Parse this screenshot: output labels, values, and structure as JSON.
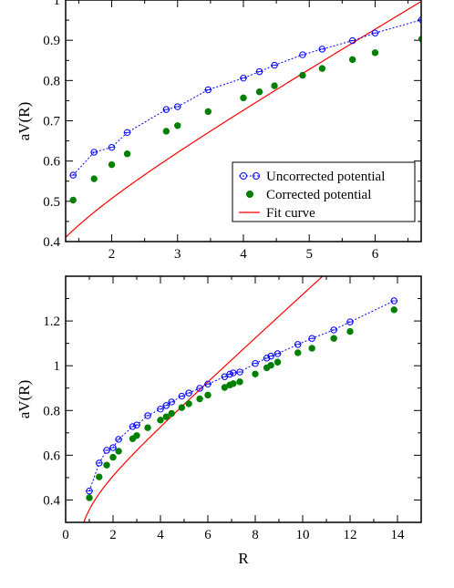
{
  "chart_data": [
    {
      "type": "scatter",
      "xlabel": "",
      "ylabel": "aV(R)",
      "xlim": [
        1.3,
        6.7
      ],
      "ylim": [
        0.4,
        1.0
      ],
      "xticks": [
        2,
        3,
        4,
        5,
        6
      ],
      "yticks": [
        0.4,
        0.5,
        0.6,
        0.7,
        0.8,
        0.9,
        1.0
      ],
      "ytick_labels": [
        "0.4",
        "0.5",
        "0.6",
        "0.7",
        "0.8",
        "0.9",
        "1"
      ],
      "legend_position": "lower-right",
      "series": [
        {
          "name": "Uncorrected potential",
          "color": "#0000ff",
          "marker": "open-circle",
          "line": "dotted",
          "x": [
            1.414,
            1.732,
            2.0,
            2.236,
            2.828,
            3.0,
            3.464,
            4.0,
            4.243,
            4.472,
            4.899,
            5.196,
            5.657,
            6.0,
            6.708
          ],
          "y": [
            0.565,
            0.622,
            0.634,
            0.671,
            0.728,
            0.735,
            0.777,
            0.806,
            0.822,
            0.838,
            0.864,
            0.878,
            0.899,
            0.918,
            0.951
          ]
        },
        {
          "name": "Corrected potential",
          "color": "#008000",
          "marker": "filled-circle",
          "line": "none",
          "x": [
            1.414,
            1.732,
            2.0,
            2.236,
            2.828,
            3.0,
            3.464,
            4.0,
            4.243,
            4.472,
            4.899,
            5.196,
            5.657,
            6.0,
            6.708
          ],
          "y": [
            0.503,
            0.556,
            0.591,
            0.618,
            0.674,
            0.688,
            0.723,
            0.757,
            0.772,
            0.787,
            0.813,
            0.83,
            0.852,
            0.869,
            0.903
          ]
        },
        {
          "name": "Fit curve",
          "color": "#ff0000",
          "marker": "none",
          "line": "solid",
          "model": {
            "form": "A + B*R - C/R",
            "A": 0.3694,
            "B": 0.096,
            "C": 0.1088
          }
        }
      ]
    },
    {
      "type": "scatter",
      "xlabel": "R",
      "ylabel": "aV(R)",
      "xlim": [
        0,
        15
      ],
      "ylim": [
        0.3,
        1.4
      ],
      "xticks": [
        0,
        2,
        4,
        6,
        8,
        10,
        12,
        14
      ],
      "yticks": [
        0.4,
        0.6,
        0.8,
        1.0,
        1.2
      ],
      "ytick_labels": [
        "0.4",
        "0.6",
        "0.8",
        "1",
        "1.2"
      ],
      "series": [
        {
          "name": "Uncorrected potential",
          "color": "#0000ff",
          "marker": "open-circle",
          "line": "dotted",
          "x": [
            1.0,
            1.414,
            1.732,
            2.0,
            2.236,
            2.828,
            3.0,
            3.464,
            4.0,
            4.243,
            4.472,
            4.899,
            5.196,
            5.657,
            6.0,
            6.708,
            6.928,
            7.071,
            7.348,
            8.0,
            8.485,
            8.66,
            8.944,
            9.798,
            10.392,
            11.314,
            12.0,
            13.856
          ],
          "y": [
            0.44,
            0.565,
            0.622,
            0.634,
            0.671,
            0.728,
            0.735,
            0.777,
            0.806,
            0.822,
            0.838,
            0.864,
            0.878,
            0.899,
            0.918,
            0.951,
            0.962,
            0.968,
            0.972,
            1.01,
            1.034,
            1.043,
            1.054,
            1.095,
            1.122,
            1.16,
            1.196,
            1.29
          ]
        },
        {
          "name": "Corrected potential",
          "color": "#008000",
          "marker": "filled-circle",
          "line": "none",
          "x": [
            1.0,
            1.414,
            1.732,
            2.0,
            2.236,
            2.828,
            3.0,
            3.464,
            4.0,
            4.243,
            4.472,
            4.899,
            5.196,
            5.657,
            6.0,
            6.708,
            6.928,
            7.071,
            7.348,
            8.0,
            8.485,
            8.66,
            8.944,
            9.798,
            10.392,
            11.314,
            12.0,
            13.856
          ],
          "y": [
            0.41,
            0.503,
            0.556,
            0.591,
            0.618,
            0.674,
            0.688,
            0.723,
            0.757,
            0.772,
            0.787,
            0.813,
            0.83,
            0.852,
            0.869,
            0.903,
            0.914,
            0.92,
            0.928,
            0.963,
            0.991,
            1.002,
            1.016,
            1.058,
            1.078,
            1.122,
            1.153,
            1.25
          ]
        },
        {
          "name": "Fit curve",
          "color": "#ff0000",
          "marker": "none",
          "line": "solid",
          "model": {
            "form": "A + B*R - C/R",
            "A": 0.3694,
            "B": 0.096,
            "C": 0.1088
          }
        }
      ]
    }
  ]
}
